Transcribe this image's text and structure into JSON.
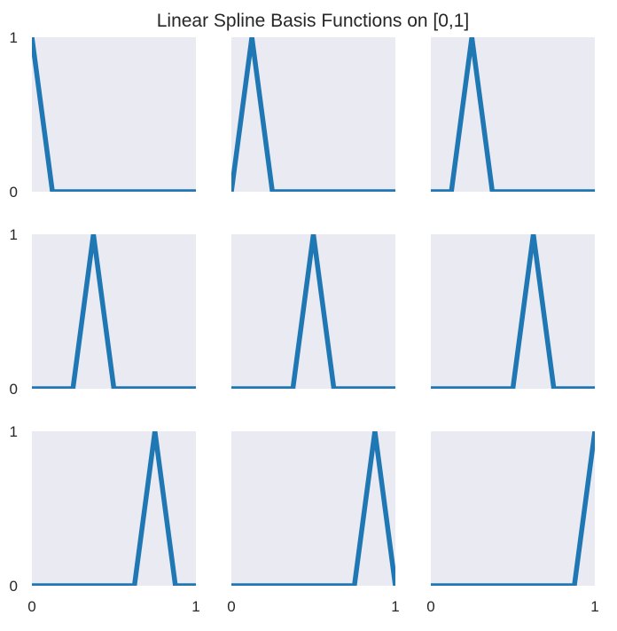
{
  "chart_data": {
    "type": "line",
    "title": "Linear Spline Basis Functions on [0,1]",
    "layout": {
      "rows": 3,
      "cols": 3
    },
    "xlim": [
      0,
      1
    ],
    "ylim": [
      0,
      1
    ],
    "x_ticks": [
      "0",
      "1"
    ],
    "y_ticks": [
      "0",
      "1"
    ],
    "grid": false,
    "line_color": "#1f77b4",
    "background_color": "#eaeaf2",
    "knots": [
      0,
      0.125,
      0.25,
      0.375,
      0.5,
      0.625,
      0.75,
      0.875,
      1
    ],
    "panels": [
      {
        "peak": 0,
        "x": [
          0,
          0.125,
          1
        ],
        "y": [
          1,
          0,
          0
        ]
      },
      {
        "peak": 0.125,
        "x": [
          0,
          0.125,
          0.25,
          1
        ],
        "y": [
          0,
          1,
          0,
          0
        ]
      },
      {
        "peak": 0.25,
        "x": [
          0,
          0.125,
          0.25,
          0.375,
          1
        ],
        "y": [
          0,
          0,
          1,
          0,
          0
        ]
      },
      {
        "peak": 0.375,
        "x": [
          0,
          0.25,
          0.375,
          0.5,
          1
        ],
        "y": [
          0,
          0,
          1,
          0,
          0
        ]
      },
      {
        "peak": 0.5,
        "x": [
          0,
          0.375,
          0.5,
          0.625,
          1
        ],
        "y": [
          0,
          0,
          1,
          0,
          0
        ]
      },
      {
        "peak": 0.625,
        "x": [
          0,
          0.5,
          0.625,
          0.75,
          1
        ],
        "y": [
          0,
          0,
          1,
          0,
          0
        ]
      },
      {
        "peak": 0.75,
        "x": [
          0,
          0.625,
          0.75,
          0.875,
          1
        ],
        "y": [
          0,
          0,
          1,
          0,
          0
        ]
      },
      {
        "peak": 0.875,
        "x": [
          0,
          0.75,
          0.875,
          1
        ],
        "y": [
          0,
          0,
          1,
          0
        ]
      },
      {
        "peak": 1,
        "x": [
          0,
          0.875,
          1
        ],
        "y": [
          0,
          0,
          1
        ]
      }
    ]
  }
}
